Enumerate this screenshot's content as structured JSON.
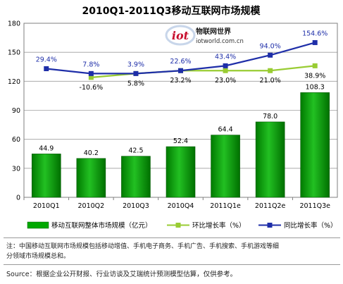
{
  "chart_data": {
    "type": "bar",
    "title": "2010Q1-2011Q3移动互联网市场规模",
    "categories": [
      "2010Q1",
      "2010Q2",
      "2010Q3",
      "2010Q4",
      "2011Q1e",
      "2011Q2e",
      "2011Q3e"
    ],
    "ylim": [
      0,
      180
    ],
    "yticks": [
      0,
      30,
      60,
      90,
      120,
      150,
      180
    ],
    "grid": true,
    "legend_position": "bottom",
    "series": [
      {
        "name": "移动互联网整体市场规模（亿元）",
        "type": "bar",
        "color": "#00a800",
        "values": [
          44.9,
          40.2,
          42.5,
          52.4,
          64.4,
          78.0,
          108.3
        ],
        "labels": [
          "44.9",
          "40.2",
          "42.5",
          "52.4",
          "64.4",
          "78.0",
          "108.3"
        ]
      },
      {
        "name": "环比增长率（%）",
        "type": "line",
        "color": "#99cc33",
        "marker": "square",
        "display_values": [
          null,
          124,
          128,
          131,
          131,
          131,
          136
        ],
        "labels": [
          "",
          "-10.6%",
          "5.8%",
          "23.2%",
          "23.0%",
          "21.0%",
          "38.9%"
        ]
      },
      {
        "name": "同比增长率（%）",
        "type": "line",
        "color": "#1e2ea8",
        "marker": "square",
        "display_values": [
          133,
          128,
          128,
          131,
          136,
          147,
          160
        ],
        "labels": [
          "29.4%",
          "7.8%",
          "3.9%",
          "22.6%",
          "43.4%",
          "94.0%",
          "154.6%"
        ]
      }
    ]
  },
  "logo": {
    "mark": "iot",
    "name": "物联网世界",
    "url": "iotworld.com.cn"
  },
  "note": {
    "line1": "注：中国移动互联网市场规模包括移动增值、手机电子商务、手机广告、手机搜索、手机游戏等细",
    "line2": "分领域市场规模总和。"
  },
  "source": "Source：根据企业公开财报、行业访谈及艾瑞统计预测模型估算，仅供参考。"
}
